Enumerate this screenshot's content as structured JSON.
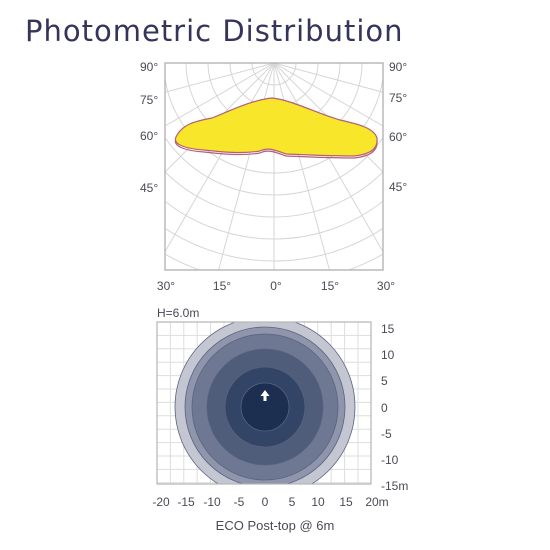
{
  "title": "Photometric Distribution",
  "polar": {
    "left_angles": [
      "90°",
      "75°",
      "60°",
      "45°"
    ],
    "right_angles": [
      "90°",
      "75°",
      "60°",
      "45°"
    ],
    "bottom_angles": [
      "30°",
      "15°",
      "0°",
      "15°",
      "30°"
    ],
    "fill_color": "#f7e62a",
    "outline_color": "#b2607a"
  },
  "isolux": {
    "height_label": "H=6.0m",
    "y_ticks": [
      "15",
      "10",
      "5",
      "0",
      "-5",
      "-10",
      "-15m"
    ],
    "x_ticks": [
      "-20",
      "-15",
      "-10",
      "-5",
      "0",
      "5",
      "10",
      "15",
      "20m"
    ],
    "ring_colors": [
      "#c4c7d2",
      "#8f96ac",
      "#6f7893",
      "#4f5c7a",
      "#334566",
      "#1d2f50"
    ],
    "luminaire_icon": "arrow-up-icon"
  },
  "caption": "ECO Post-top @ 6m"
}
